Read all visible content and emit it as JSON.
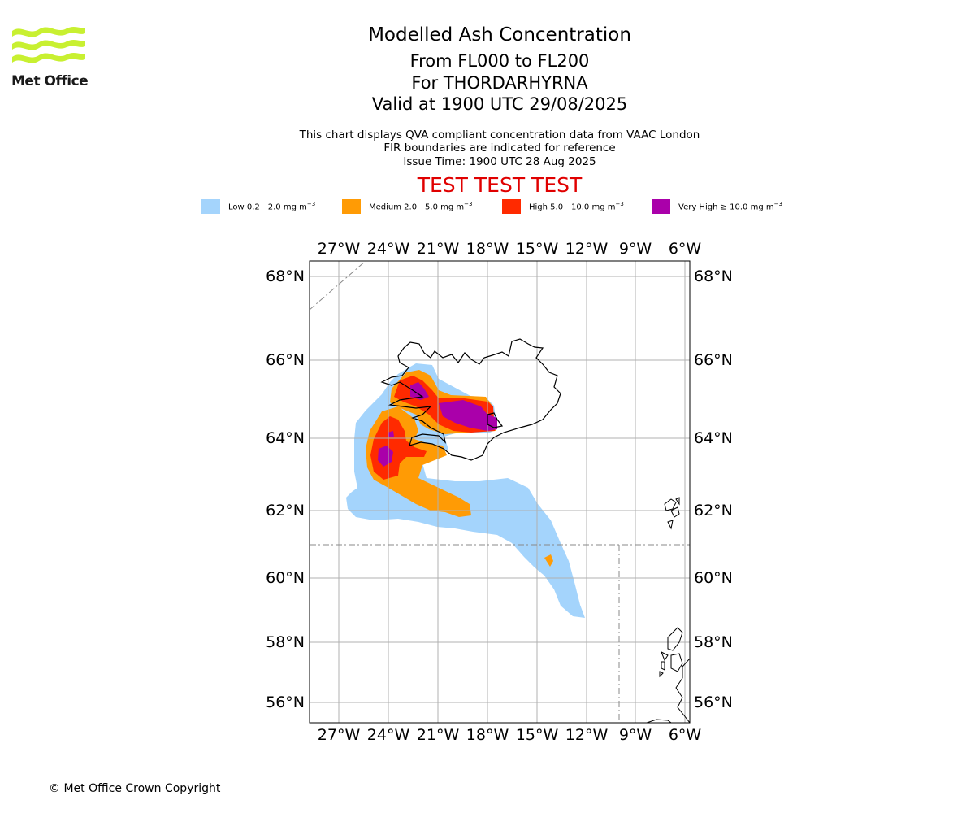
{
  "logo": {
    "text": "Met Office"
  },
  "header": {
    "title": "Modelled Ash Concentration",
    "levels": "From FL000 to FL200",
    "volcano": "For THORDARHYRNA",
    "valid": "Valid at 1900 UTC 29/08/2025",
    "note1": "This chart displays QVA compliant concentration data from VAAC London",
    "note2": "FIR boundaries are indicated for reference",
    "issue": "Issue Time: 1900 UTC 28 Aug 2025",
    "test_banner": "TEST TEST TEST"
  },
  "legend": [
    {
      "label": "Low 0.2 - 2.0 mg m",
      "color": "#a4d4fc"
    },
    {
      "label": "Medium 2.0 - 5.0 mg m",
      "color": "#ff9b05"
    },
    {
      "label": "High 5.0 - 10.0 mg m",
      "color": "#ff2a00"
    },
    {
      "label": "Very High ≥ 10.0 mg m",
      "color": "#aa00aa"
    }
  ],
  "legend_unit_exponent": "−3",
  "map": {
    "longitude_ticks": [
      "27°W",
      "24°W",
      "21°W",
      "18°W",
      "15°W",
      "12°W",
      "9°W",
      "6°W"
    ],
    "latitude_ticks": [
      "68°N",
      "66°N",
      "64°N",
      "62°N",
      "60°N",
      "58°N",
      "56°N"
    ],
    "colors": {
      "low": "#a4d4fc",
      "medium": "#ff9b05",
      "high": "#ff2a00",
      "very_high": "#aa00aa",
      "grid": "#b0b0b0",
      "coast": "#000000"
    }
  },
  "footer": {
    "copyright": "© Met Office Crown Copyright"
  }
}
